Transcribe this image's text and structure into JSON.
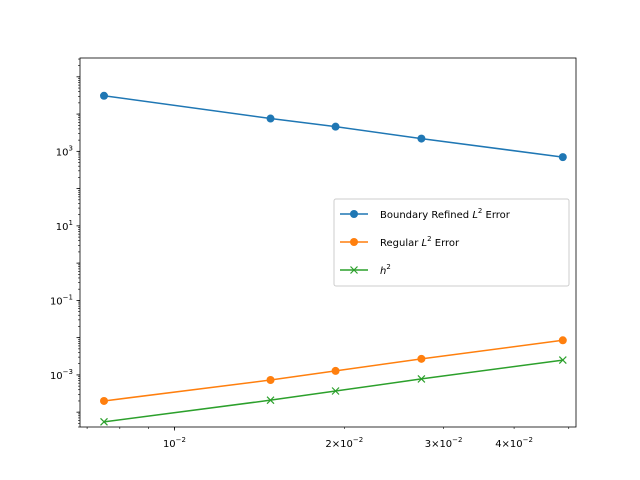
{
  "chart_data": {
    "type": "line",
    "xscale": "log",
    "yscale": "log",
    "xlim": [
      0.0068,
      0.0515
    ],
    "ylim": [
      4e-05,
      320000
    ],
    "grid": false,
    "legend_position": "center-right",
    "x": [
      0.0075,
      0.0148,
      0.0193,
      0.0274,
      0.0488
    ],
    "series": [
      {
        "name": "Boundary Refined L² Error",
        "name_base": "Boundary Refined ",
        "name_math": "L",
        "name_sup": "2",
        "name_tail": " Error",
        "color": "#1f77b4",
        "marker": "circle",
        "values": [
          31000,
          7600,
          4600,
          2200,
          700
        ]
      },
      {
        "name": "Regular L² Error",
        "name_base": "Regular ",
        "name_math": "L",
        "name_sup": "2",
        "name_tail": " Error",
        "color": "#ff7f0e",
        "marker": "circle",
        "values": [
          0.0002,
          0.00073,
          0.00128,
          0.0027,
          0.0085
        ]
      },
      {
        "name": "h²",
        "name_base": "",
        "name_math": "h",
        "name_sup": "2",
        "name_tail": "",
        "color": "#2ca02c",
        "marker": "x",
        "values": [
          5.5e-05,
          0.00021,
          0.00037,
          0.00078,
          0.0025
        ]
      }
    ],
    "xticks": [
      {
        "value": 0.01,
        "base": "10",
        "exp": "−2"
      },
      {
        "value": 0.02,
        "base": "2×10",
        "exp": "−2"
      },
      {
        "value": 0.03,
        "base": "3×10",
        "exp": "−2"
      },
      {
        "value": 0.04,
        "base": "4×10",
        "exp": "−2"
      }
    ],
    "yticks": [
      {
        "value": 0.001,
        "base": "10",
        "exp": "−3"
      },
      {
        "value": 0.1,
        "base": "10",
        "exp": "−1"
      },
      {
        "value": 10,
        "base": "10",
        "exp": "1"
      },
      {
        "value": 1000,
        "base": "10",
        "exp": "3"
      }
    ]
  }
}
